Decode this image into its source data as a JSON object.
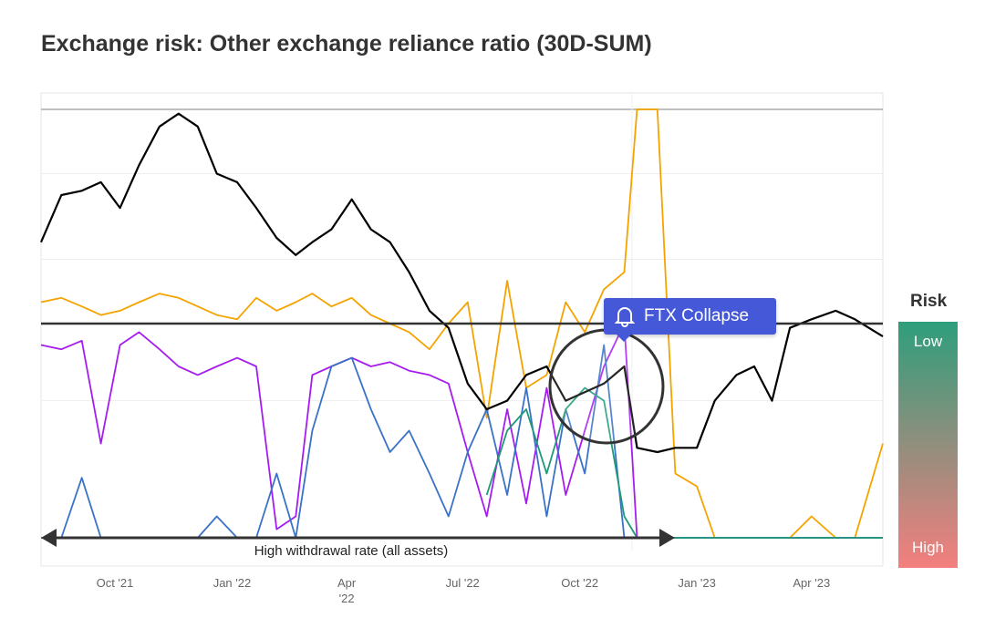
{
  "title": "Exchange risk: Other exchange reliance ratio (30D-SUM)",
  "annotation": {
    "callout": "FTX Collapse",
    "callout_icon": "bell-icon",
    "arrow_label": "High withdrawal rate (all assets)"
  },
  "risk_legend": {
    "title": "Risk",
    "low": "Low",
    "high": "High",
    "colors": [
      "#2e9e7c",
      "#f47f7e"
    ]
  },
  "chart_data": {
    "type": "line",
    "title": "Exchange risk: Other exchange reliance ratio (30D-SUM)",
    "xlabel": "",
    "ylabel": "",
    "grid": true,
    "x_ticks": [
      {
        "date": "2021-10-01",
        "label": "Oct '21"
      },
      {
        "date": "2022-01-01",
        "label": "Jan '22"
      },
      {
        "date": "2022-04-01",
        "label": "Apr",
        "label2": "'22"
      },
      {
        "date": "2022-07-01",
        "label": "Jul '22"
      },
      {
        "date": "2022-10-01",
        "label": "Oct '22"
      },
      {
        "date": "2023-01-01",
        "label": "Jan '23"
      },
      {
        "date": "2023-04-01",
        "label": "Apr '23"
      }
    ],
    "xlim": [
      "2021-08-04",
      "2023-05-27"
    ],
    "ylim": [
      0,
      100
    ],
    "threshold": 50,
    "x": [
      "2021-08-04",
      "2021-08-20",
      "2021-09-05",
      "2021-09-20",
      "2021-10-05",
      "2021-10-20",
      "2021-11-05",
      "2021-11-20",
      "2021-12-05",
      "2021-12-20",
      "2022-01-05",
      "2022-01-20",
      "2022-02-05",
      "2022-02-20",
      "2022-03-05",
      "2022-03-20",
      "2022-04-05",
      "2022-04-20",
      "2022-05-05",
      "2022-05-20",
      "2022-06-05",
      "2022-06-20",
      "2022-07-05",
      "2022-07-20",
      "2022-08-05",
      "2022-08-20",
      "2022-09-05",
      "2022-09-20",
      "2022-10-05",
      "2022-10-20",
      "2022-11-05",
      "2022-11-15",
      "2022-12-01",
      "2022-12-15",
      "2023-01-01",
      "2023-01-15",
      "2023-02-01",
      "2023-02-15",
      "2023-03-01",
      "2023-03-15",
      "2023-04-01",
      "2023-04-20",
      "2023-05-05",
      "2023-05-27"
    ],
    "series": [
      {
        "color": "#f5a300",
        "values": [
          55,
          56,
          54,
          52,
          53,
          55,
          57,
          56,
          54,
          52,
          51,
          56,
          53,
          55,
          57,
          54,
          56,
          52,
          50,
          48,
          44,
          50,
          55,
          28,
          60,
          35,
          38,
          55,
          48,
          58,
          62,
          100,
          100,
          15,
          12,
          0,
          0,
          0,
          0,
          0,
          5,
          0,
          0,
          22
        ]
      },
      {
        "color": "#a61cf0",
        "values": [
          45,
          44,
          46,
          22,
          45,
          48,
          44,
          40,
          38,
          40,
          42,
          40,
          2,
          5,
          38,
          40,
          42,
          40,
          41,
          39,
          38,
          36,
          20,
          5,
          30,
          8,
          35,
          10,
          25,
          40,
          50,
          0,
          0,
          0,
          0,
          0,
          0,
          0,
          0,
          0,
          0,
          0,
          0,
          0
        ]
      },
      {
        "color": "#3a72c8",
        "values": [
          0,
          0,
          14,
          0,
          0,
          0,
          0,
          0,
          0,
          5,
          0,
          0,
          15,
          0,
          25,
          40,
          42,
          30,
          20,
          25,
          15,
          5,
          20,
          30,
          10,
          35,
          5,
          30,
          15,
          45,
          0,
          0,
          0,
          0,
          0,
          0,
          0,
          0,
          0,
          0,
          0,
          0,
          0,
          0
        ]
      },
      {
        "color": "#1e9a78",
        "values": [
          null,
          null,
          null,
          null,
          null,
          null,
          null,
          null,
          null,
          null,
          null,
          null,
          null,
          null,
          null,
          null,
          null,
          null,
          null,
          null,
          null,
          null,
          null,
          10,
          25,
          30,
          15,
          30,
          35,
          32,
          5,
          0,
          0,
          0,
          0,
          0,
          0,
          0,
          0,
          0,
          0,
          0,
          0,
          0
        ]
      },
      {
        "color": "#000000",
        "values": [
          69,
          80,
          81,
          83,
          77,
          87,
          96,
          99,
          96,
          85,
          83,
          77,
          70,
          66,
          69,
          72,
          79,
          72,
          69,
          62,
          53,
          49,
          36,
          30,
          32,
          38,
          40,
          32,
          34,
          36,
          40,
          21,
          20,
          21,
          21,
          32,
          38,
          40,
          32,
          49,
          51,
          53,
          51,
          47
        ]
      }
    ]
  }
}
